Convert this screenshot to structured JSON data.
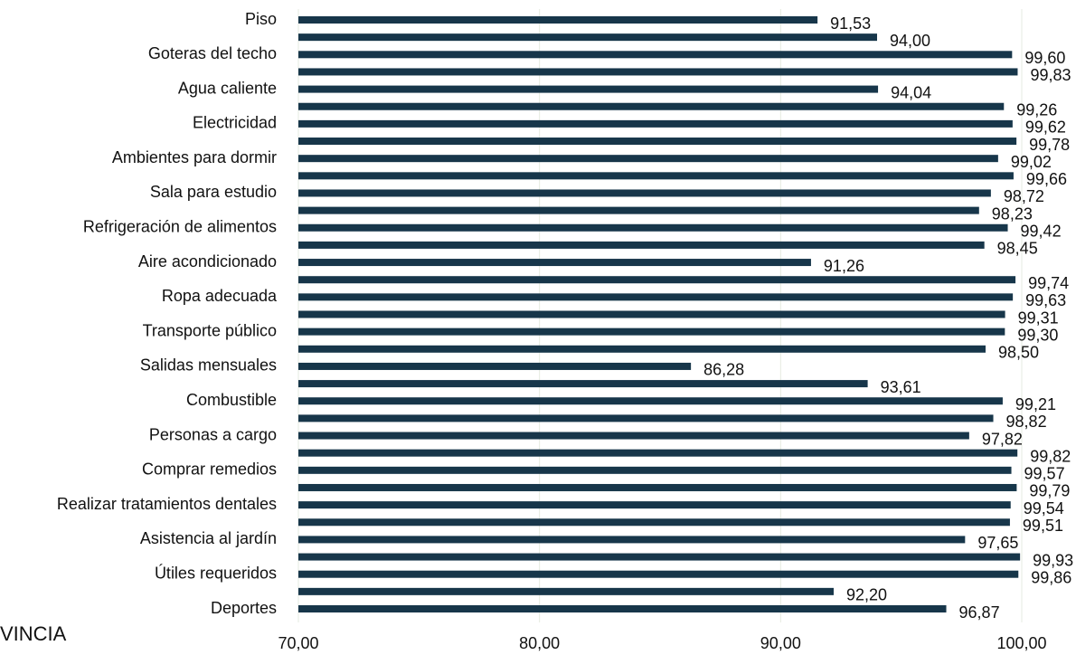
{
  "chart_data": {
    "type": "hbar",
    "categories": [
      "Piso",
      null,
      "Goteras del techo",
      null,
      "Agua caliente",
      null,
      "Electricidad",
      null,
      "Ambientes para dormir",
      null,
      "Sala para estudio",
      null,
      "Refrigeración de alimentos",
      null,
      "Aire acondicionado",
      null,
      "Ropa adecuada",
      null,
      "Transporte público",
      null,
      "Salidas mensuales",
      null,
      "Combustible",
      null,
      "Personas a cargo",
      null,
      "Comprar remedios",
      null,
      "Realizar tratamientos dentales",
      null,
      "Asistencia al jardín",
      null,
      "Útiles requeridos",
      null,
      "Deportes"
    ],
    "values": [
      91.53,
      94.0,
      99.6,
      99.83,
      94.04,
      99.26,
      99.62,
      99.78,
      99.02,
      99.66,
      98.72,
      98.23,
      99.42,
      98.45,
      91.26,
      99.74,
      99.63,
      99.31,
      99.3,
      98.5,
      86.28,
      93.61,
      99.21,
      98.82,
      97.82,
      99.82,
      99.57,
      99.79,
      99.54,
      99.51,
      97.65,
      99.93,
      99.86,
      92.2,
      96.87
    ],
    "value_labels": [
      "91,53",
      "94,00",
      "99,60",
      "99,83",
      "94,04",
      "99,26",
      "99,62",
      "99,78",
      "99,02",
      "99,66",
      "98,72",
      "98,23",
      "99,42",
      "98,45",
      "91,26",
      "99,74",
      "99,63",
      "99,31",
      "99,30",
      "98,50",
      "86,28",
      "93,61",
      "99,21",
      "98,82",
      "97,82",
      "99,82",
      "99,57",
      "99,79",
      "99,54",
      "99,51",
      "97,65",
      "99,93",
      "99,86",
      "92,20",
      "96,87"
    ],
    "color": "#17364a",
    "xlim": [
      70,
      100
    ],
    "xticks": [
      {
        "value": 70,
        "label": "70,00"
      },
      {
        "value": 80,
        "label": "80,00"
      },
      {
        "value": 90,
        "label": "90,00"
      },
      {
        "value": 100,
        "label": "100,00"
      }
    ],
    "grid": true,
    "footer_text": "VINCIA"
  }
}
